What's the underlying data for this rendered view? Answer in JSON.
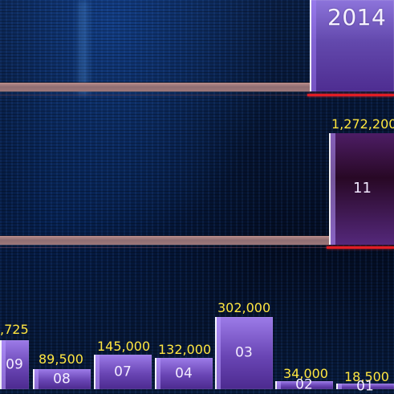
{
  "chart_data": {
    "type": "bar",
    "year_label": "2014",
    "categories": [
      "11",
      "09",
      "08",
      "07",
      "04",
      "03",
      "02",
      "01"
    ],
    "values": [
      1272200,
      null,
      89500,
      145000,
      132000,
      302000,
      34000,
      18500
    ],
    "value_labels": [
      "1,272,200",
      ",725",
      "89,500",
      "145,000",
      "132,000",
      "302,000",
      "34,000",
      "18,500"
    ],
    "colors": {
      "background": "#020611",
      "bar_purple": "#6945b4",
      "value_yellow": "#ffe640",
      "shelf": "#9d7779",
      "accent": "#e11d25"
    }
  }
}
